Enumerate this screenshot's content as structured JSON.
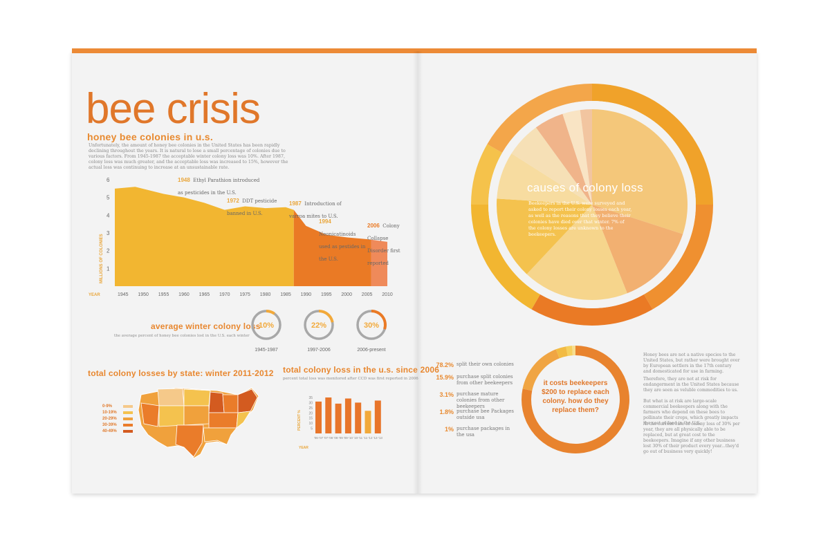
{
  "page": {
    "title": "bee crisis",
    "subtitle": "honey bee colonies in u.s.",
    "intro": "Unfortunately, the amount of honey bee colonies in the United States has been rapidly declining throughout the years. It is natural to lose a small percentage of colonies due to various factors. From 1945-1987 the acceptable winter colony loss was 10%. After 1987, colony loss was much greater, and the acceptable loss was increased to 15%, however the actual loss was continuing to increase at an unsustainable rate."
  },
  "colors": {
    "accent": "#e0772a",
    "amber": "#f2b631",
    "deep": "#ea7a25",
    "salmon": "#ef8a5a",
    "pale": "#f6cf8a"
  },
  "chart_data": [
    {
      "type": "area",
      "xlabel": "YEAR",
      "ylabel": "MILLIONS OF COLONIES",
      "xlim": [
        1943,
        2010
      ],
      "ylim": [
        0,
        6
      ],
      "x_ticks": [
        1945,
        1950,
        1955,
        1960,
        1965,
        1970,
        1975,
        1980,
        1985,
        1990,
        1995,
        2000,
        2005,
        2010
      ],
      "y_ticks": [
        1,
        2,
        3,
        4,
        5,
        6
      ],
      "x": [
        1943,
        1948,
        1955,
        1960,
        1965,
        1970,
        1975,
        1980,
        1985,
        1987,
        1990,
        1995,
        2000,
        2005,
        2010
      ],
      "y": [
        5.5,
        5.6,
        5.2,
        5.0,
        4.7,
        4.3,
        4.5,
        4.4,
        4.45,
        4.3,
        3.4,
        2.9,
        2.75,
        2.65,
        2.5
      ],
      "annotations": [
        {
          "year_label": "1948",
          "text": "Ethyl Parathion introduced as pesticides in the U.S."
        },
        {
          "year_label": "1972",
          "text": "DDT pesticide banned in U.S."
        },
        {
          "year_label": "1987",
          "text": "Introduction of varroa mites to U.S."
        },
        {
          "year_label": "1994",
          "text": "Neonicatinoids used as pestides in the U.S."
        },
        {
          "year_label": "2006",
          "text": "Colony Collapse Disorder first reported"
        }
      ]
    },
    {
      "type": "bar",
      "title": "total colony loss in the u.s. since 2006",
      "note": "percent total loss was monitored after CCD was first reported in 2006",
      "xlabel": "YEAR",
      "ylabel": "PERCENT %",
      "categories": [
        "'06-'07",
        "'07-'08",
        "'08-'09",
        "'09-'10",
        "'10-'11",
        "'11-'12",
        "'12-'13"
      ],
      "values": [
        31,
        35,
        29,
        34,
        30,
        22,
        32
      ],
      "ylim": [
        0,
        35
      ],
      "y_ticks": [
        5,
        10,
        15,
        20,
        25,
        30,
        35
      ]
    },
    {
      "type": "pie",
      "title": "causes of colony loss",
      "text": "Beekeepers in the U.S. were surveyed and asked to report their colony losses each year, as well as the reasons that they believe their colonies have died over that winter. 7% of the colony losses are unknown to the beekeepers.",
      "slices": [
        {
          "value": 30,
          "color": "#f4c77a"
        },
        {
          "value": 14,
          "color": "#f2b071"
        },
        {
          "value": 18,
          "color": "#f6d58c"
        },
        {
          "value": 14,
          "color": "#f4c24e"
        },
        {
          "value": 8,
          "color": "#f7dca0"
        },
        {
          "value": 6,
          "color": "#f6e0b6"
        },
        {
          "value": 5,
          "color": "#f0b48a"
        },
        {
          "value": 3,
          "color": "#f9e4c4"
        },
        {
          "value": 2,
          "color": "#f2c5a0"
        }
      ]
    },
    {
      "type": "pie",
      "title": "it costs beekeepers $200 to replace each colony. how do they replace them?",
      "labels": [
        "split their own colonies",
        "purchase split colonies from other beekeepers",
        "purchase mature colonies from other beekeepers",
        "purchase bee Packages outside usa",
        "purchase packages in the usa"
      ],
      "values": [
        78.2,
        15.9,
        3.1,
        1.8,
        1.0
      ],
      "display": [
        "78.2%",
        "15.9%",
        "3.1%",
        "1.8%",
        "1%"
      ],
      "colors": [
        "#e8832e",
        "#f0a543",
        "#f2bb43",
        "#f6d05d",
        "#f7de8f"
      ]
    }
  ],
  "winter_loss": {
    "heading": "average winter colony loss",
    "note": "the average percent of honey bee colonies lost in the U.S. each winter",
    "items": [
      {
        "value": "10%",
        "period": "1945-1987",
        "fraction": 0.1
      },
      {
        "value": "22%",
        "period": "1997-2006",
        "fraction": 0.22
      },
      {
        "value": "30%",
        "period": "2006-present",
        "fraction": 0.3
      }
    ]
  },
  "map": {
    "heading": "total colony losses by state: winter 2011-2012",
    "legend": [
      "0-9%",
      "10-19%",
      "20-29%",
      "30-39%",
      "40-49%"
    ],
    "legend_colors": [
      "#f5c98a",
      "#f4c24e",
      "#f0a13c",
      "#ea7c2a",
      "#d35b20"
    ]
  },
  "right_text": {
    "p1": "Honey bees are not a native species to the United States, but rather were brought over by European settlers in the 17th century and domesticated for use in farming.",
    "p2": "Therefore, they are not at risk for endangerment in the United States because they are seen as veluble commodities to us.",
    "p3": "But what is at risk are large-scale commercial beekeepers along with the farmers who depend on these bees to pollinate their crops, which greatly impacts the cost of food in the U.S.",
    "p4": "At the current rate of colony loss of 30% per year, they are all physically able to be replaced, but at great cost to the beekeepers. Imagine if any other business lost 30% of their product every year...they'd go out of business very quickly!"
  }
}
